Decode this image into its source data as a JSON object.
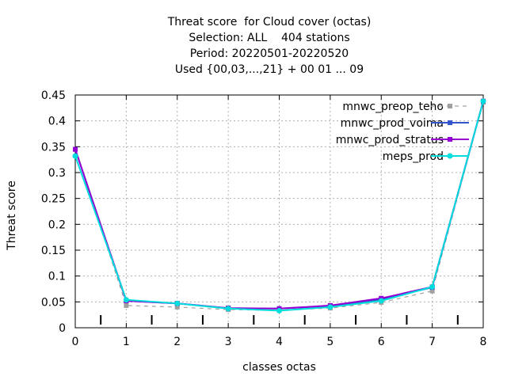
{
  "chart_data": {
    "type": "line",
    "title_lines": [
      "Threat score  for Cloud cover (octas)",
      "Selection: ALL    404 stations",
      "Period: 20220501-20220520",
      "Used {00,03,...,21} + 00 01 ... 09"
    ],
    "xlabel": "classes octas",
    "ylabel": "Threat score",
    "xlim": [
      0,
      8
    ],
    "ylim": [
      0,
      0.45
    ],
    "xticks": [
      "0",
      "1",
      "2",
      "3",
      "4",
      "5",
      "6",
      "7",
      "8"
    ],
    "yticks": [
      "0",
      "0.05",
      "0.1",
      "0.15",
      "0.2",
      "0.25",
      "0.3",
      "0.35",
      "0.4",
      "0.45"
    ],
    "grid": true,
    "legend_position": "top-right",
    "x": [
      0,
      1,
      2,
      3,
      4,
      5,
      6,
      7,
      8
    ],
    "series": [
      {
        "name": "mnwc_preop_teho",
        "color": "#a0a0a0",
        "dashed": true,
        "marker": "x-square",
        "values": [
          0.345,
          0.043,
          0.04,
          0.035,
          0.034,
          0.038,
          0.049,
          0.071,
          0.436
        ]
      },
      {
        "name": "mnwc_prod_voima",
        "color": "#3355cc",
        "dashed": false,
        "marker": "square",
        "values": [
          0.345,
          0.052,
          0.047,
          0.038,
          0.037,
          0.042,
          0.055,
          0.078,
          0.438
        ]
      },
      {
        "name": "mnwc_prod_stratus",
        "color": "#9400d3",
        "dashed": false,
        "marker": "square",
        "values": [
          0.345,
          0.052,
          0.047,
          0.038,
          0.037,
          0.043,
          0.057,
          0.079,
          0.438
        ]
      },
      {
        "name": "meps_prod",
        "color": "#00dddd",
        "dashed": false,
        "marker": "circle",
        "values": [
          0.332,
          0.054,
          0.047,
          0.037,
          0.033,
          0.04,
          0.052,
          0.079,
          0.438
        ]
      }
    ],
    "minor_tick_positions": [
      0.5,
      1.5,
      2.5,
      3.5,
      4.5,
      5.5,
      6.5,
      7.5
    ]
  }
}
